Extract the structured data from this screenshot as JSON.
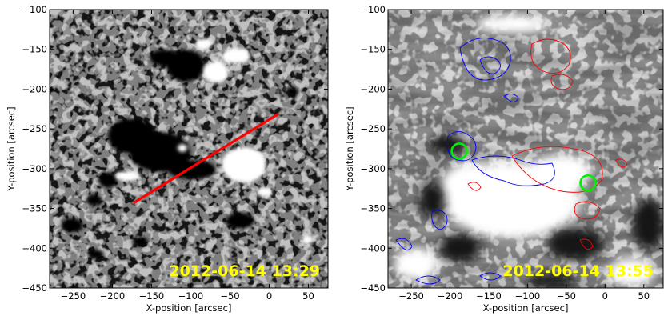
{
  "chart_data": [
    {
      "type": "heatmap",
      "title": "",
      "xlabel": "X-position [arcsec]",
      "ylabel": "Y-position [arcsec]",
      "xlim": [
        -280,
        75
      ],
      "ylim": [
        -450,
        -100
      ],
      "xticks": [
        -250,
        -200,
        -150,
        -100,
        -50,
        0,
        50
      ],
      "yticks": [
        -100,
        -150,
        -200,
        -250,
        -300,
        -350,
        -400,
        -450
      ],
      "timestamp": "2012-06-14 13:29",
      "slit": {
        "x": [
          -173,
          12
        ],
        "y": [
          -343,
          -231
        ],
        "color": "#ff0000"
      },
      "colors": {
        "background": "#8f8f8f",
        "negative": "#000000",
        "positive": "#ffffff"
      }
    },
    {
      "type": "heatmap",
      "title": "",
      "xlabel": "X-position [arcsec]",
      "ylabel": "Y-position [arcsec]",
      "xlim": [
        -280,
        75
      ],
      "ylim": [
        -450,
        -100
      ],
      "xticks": [
        -250,
        -200,
        -150,
        -100,
        -50,
        0,
        50
      ],
      "yticks": [
        -100,
        -150,
        -200,
        -250,
        -300,
        -350,
        -400,
        -450
      ],
      "timestamp": "2012-06-14 13:55",
      "markers": [
        {
          "x": -188,
          "y": -278,
          "color": "#00ee00"
        },
        {
          "x": -22,
          "y": -318,
          "color": "#00ee00"
        }
      ],
      "colors": {
        "negative_contour": "#0000ff",
        "positive_contour": "#ff0000"
      }
    }
  ]
}
